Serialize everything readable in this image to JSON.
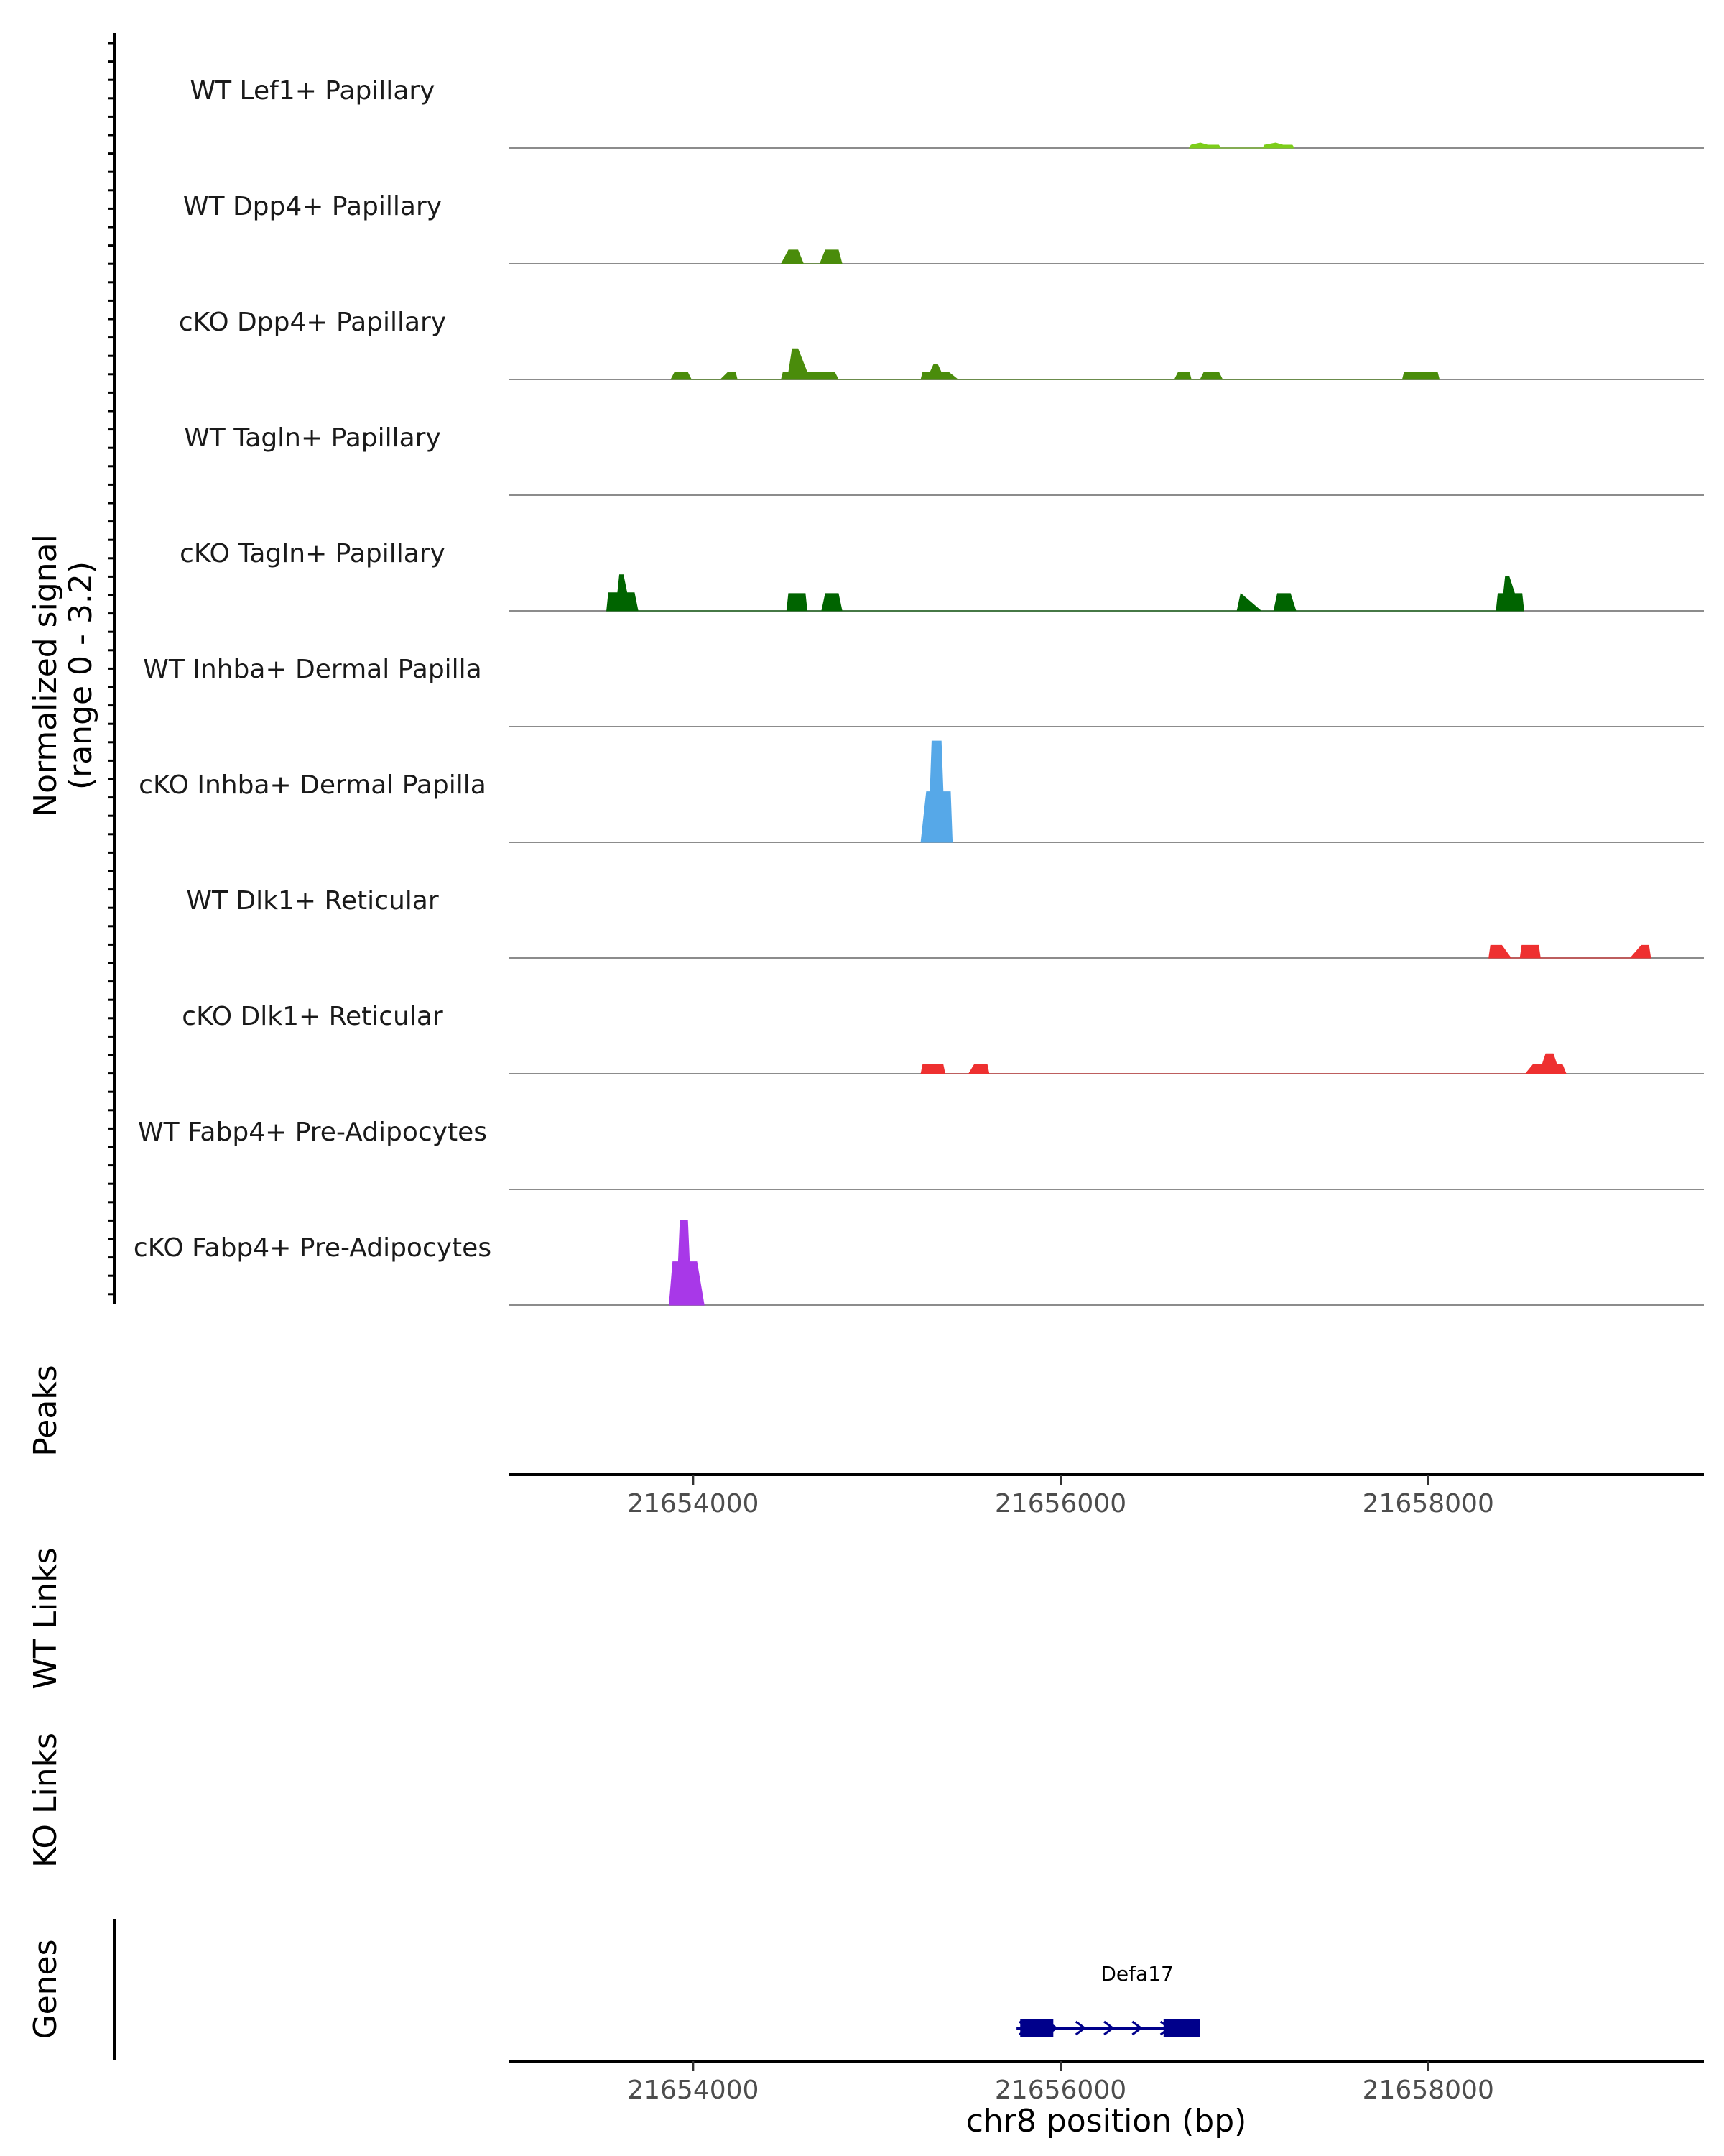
{
  "chart_data": {
    "type": "area",
    "title": "",
    "coverage": {
      "ylabel_line1": "Normalized signal",
      "ylabel_line2": "(range 0 - 3.2)",
      "ylim": [
        0,
        3.2
      ],
      "xlim": [
        21653000,
        21659500
      ],
      "tracks": [
        {
          "name": "WT Lef1+ Papillary",
          "color": "#7CCD1A",
          "values": [
            [
              21656700,
              0
            ],
            [
              21656710,
              0.08
            ],
            [
              21656760,
              0.14
            ],
            [
              21656800,
              0.08
            ],
            [
              21656860,
              0.08
            ],
            [
              21656870,
              0
            ],
            [
              21657100,
              0
            ],
            [
              21657110,
              0.08
            ],
            [
              21657170,
              0.14
            ],
            [
              21657210,
              0.08
            ],
            [
              21657260,
              0.08
            ],
            [
              21657270,
              0
            ]
          ]
        },
        {
          "name": "WT Dpp4+ Papillary",
          "color": "#4A8C0B",
          "values": [
            [
              21654480,
              0
            ],
            [
              21654520,
              0.38
            ],
            [
              21654570,
              0.38
            ],
            [
              21654600,
              0
            ],
            [
              21654690,
              0
            ],
            [
              21654720,
              0.38
            ],
            [
              21654790,
              0.38
            ],
            [
              21654810,
              0
            ]
          ]
        },
        {
          "name": "cKO Dpp4+ Papillary",
          "color": "#4A8C0B",
          "values": [
            [
              21653880,
              0
            ],
            [
              21653900,
              0.2
            ],
            [
              21653970,
              0.2
            ],
            [
              21653990,
              0
            ],
            [
              21654150,
              0
            ],
            [
              21654190,
              0.2
            ],
            [
              21654230,
              0.2
            ],
            [
              21654240,
              0
            ],
            [
              21654480,
              0
            ],
            [
              21654490,
              0.2
            ],
            [
              21654520,
              0.2
            ],
            [
              21654540,
              0.85
            ],
            [
              21654570,
              0.85
            ],
            [
              21654620,
              0.2
            ],
            [
              21654770,
              0.2
            ],
            [
              21654790,
              0
            ],
            [
              21655240,
              0
            ],
            [
              21655250,
              0.2
            ],
            [
              21655290,
              0.2
            ],
            [
              21655310,
              0.42
            ],
            [
              21655330,
              0.42
            ],
            [
              21655350,
              0.2
            ],
            [
              21655390,
              0.2
            ],
            [
              21655440,
              0
            ],
            [
              21656620,
              0
            ],
            [
              21656640,
              0.2
            ],
            [
              21656700,
              0.2
            ],
            [
              21656710,
              0
            ],
            [
              21656760,
              0
            ],
            [
              21656780,
              0.2
            ],
            [
              21656860,
              0.2
            ],
            [
              21656880,
              0
            ],
            [
              21657860,
              0
            ],
            [
              21657870,
              0.2
            ],
            [
              21658050,
              0.2
            ],
            [
              21658060,
              0
            ]
          ]
        },
        {
          "name": "WT Tagln+ Papillary",
          "color": "#006400",
          "values": []
        },
        {
          "name": "cKO Tagln+ Papillary",
          "color": "#006400",
          "values": [
            [
              21653530,
              0
            ],
            [
              21653540,
              0.5
            ],
            [
              21653590,
              0.5
            ],
            [
              21653600,
              1.0
            ],
            [
              21653620,
              1.0
            ],
            [
              21653640,
              0.5
            ],
            [
              21653680,
              0.5
            ],
            [
              21653700,
              0
            ],
            [
              21654510,
              0
            ],
            [
              21654520,
              0.48
            ],
            [
              21654610,
              0.48
            ],
            [
              21654620,
              0
            ],
            [
              21654700,
              0
            ],
            [
              21654720,
              0.48
            ],
            [
              21654790,
              0.48
            ],
            [
              21654810,
              0
            ],
            [
              21656960,
              0
            ],
            [
              21656980,
              0.48
            ],
            [
              21657090,
              0
            ],
            [
              21657160,
              0
            ],
            [
              21657180,
              0.48
            ],
            [
              21657250,
              0.48
            ],
            [
              21657280,
              0
            ],
            [
              21658370,
              0
            ],
            [
              21658380,
              0.48
            ],
            [
              21658410,
              0.48
            ],
            [
              21658420,
              0.95
            ],
            [
              21658440,
              0.95
            ],
            [
              21658470,
              0.48
            ],
            [
              21658510,
              0.48
            ],
            [
              21658520,
              0
            ]
          ]
        },
        {
          "name": "WT Inhba+ Dermal Papilla",
          "color": "#56A8E8",
          "values": []
        },
        {
          "name": "cKO Inhba+ Dermal Papilla",
          "color": "#56A8E8",
          "values": [
            [
              21655240,
              0
            ],
            [
              21655270,
              1.4
            ],
            [
              21655290,
              1.4
            ],
            [
              21655300,
              2.8
            ],
            [
              21655350,
              2.8
            ],
            [
              21655360,
              1.4
            ],
            [
              21655400,
              1.4
            ],
            [
              21655410,
              0
            ]
          ]
        },
        {
          "name": "WT Dlk1+ Reticular",
          "color": "#EE3030",
          "values": [
            [
              21658330,
              0
            ],
            [
              21658340,
              0.35
            ],
            [
              21658400,
              0.35
            ],
            [
              21658450,
              0
            ],
            [
              21658500,
              0
            ],
            [
              21658510,
              0.35
            ],
            [
              21658600,
              0.35
            ],
            [
              21658610,
              0
            ],
            [
              21659100,
              0
            ],
            [
              21659160,
              0.35
            ],
            [
              21659200,
              0.35
            ],
            [
              21659210,
              0
            ]
          ]
        },
        {
          "name": "cKO Dlk1+ Reticular",
          "color": "#EE3030",
          "values": [
            [
              21655240,
              0
            ],
            [
              21655250,
              0.25
            ],
            [
              21655360,
              0.25
            ],
            [
              21655370,
              0
            ],
            [
              21655500,
              0
            ],
            [
              21655530,
              0.25
            ],
            [
              21655600,
              0.25
            ],
            [
              21655610,
              0
            ],
            [
              21658530,
              0
            ],
            [
              21658570,
              0.25
            ],
            [
              21658620,
              0.25
            ],
            [
              21658640,
              0.55
            ],
            [
              21658680,
              0.55
            ],
            [
              21658700,
              0.25
            ],
            [
              21658730,
              0.25
            ],
            [
              21658750,
              0
            ]
          ]
        },
        {
          "name": "WT Fabp4+ Pre-Adipocytes",
          "color": "#A838E8",
          "values": []
        },
        {
          "name": "cKO Fabp4+ Pre-Adipocytes",
          "color": "#A838E8",
          "values": [
            [
              21653870,
              0
            ],
            [
              21653890,
              1.2
            ],
            [
              21653920,
              1.2
            ],
            [
              21653930,
              2.35
            ],
            [
              21653970,
              2.35
            ],
            [
              21653980,
              1.2
            ],
            [
              21654020,
              1.2
            ],
            [
              21654060,
              0
            ]
          ]
        }
      ]
    },
    "peaks": {
      "label": "Peaks",
      "items": []
    },
    "x_axis_top": {
      "ticks": [
        21654000,
        21656000,
        21658000
      ],
      "tick_labels": [
        "21654000",
        "21656000",
        "21658000"
      ]
    },
    "wt_links": {
      "label": "WT Links",
      "items": []
    },
    "ko_links": {
      "label": "KO Links",
      "items": []
    },
    "genes": {
      "label": "Genes",
      "items": [
        {
          "name": "Defa17",
          "start": 21655760,
          "end": 21656760,
          "strand": "+",
          "exons": [
            [
              21655780,
              21655960
            ],
            [
              21656560,
              21656760
            ]
          ],
          "color": "#00008B"
        }
      ]
    },
    "x_axis_bottom": {
      "ticks": [
        21654000,
        21656000,
        21658000
      ],
      "tick_labels": [
        "21654000",
        "21656000",
        "21658000"
      ],
      "xlabel": "chr8 position (bp)"
    }
  }
}
